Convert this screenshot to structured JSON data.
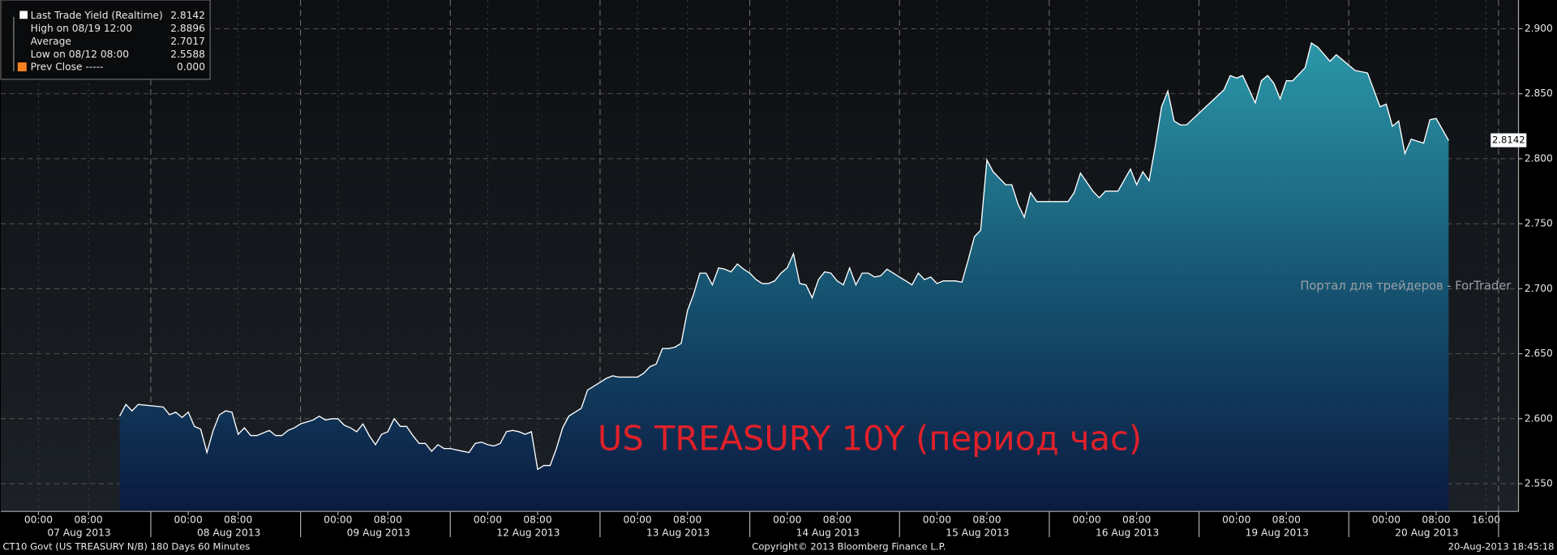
{
  "chart_data": {
    "type": "area",
    "title": "US TREASURY 10Y (период час)",
    "watermark": "Портал для трейдеров - ForTrader",
    "series": [
      {
        "name": "Last Trade Yield (Realtime)",
        "color": "#ffffff",
        "x": [
          13,
          14,
          15,
          16,
          20,
          21,
          22,
          23,
          24,
          25,
          26,
          27,
          28,
          29,
          30,
          31,
          32,
          33,
          34,
          35,
          36,
          37,
          38,
          39,
          40,
          41,
          42,
          44,
          45,
          46,
          47,
          48,
          49,
          50,
          51,
          52,
          53,
          54,
          55,
          56,
          57,
          58,
          59,
          60,
          61,
          62,
          63,
          64,
          65,
          66,
          68,
          69,
          70,
          71,
          72,
          73,
          74,
          75,
          76,
          77,
          78,
          79,
          80,
          81,
          82,
          83,
          84,
          85,
          86,
          87,
          88,
          89,
          90,
          91,
          92,
          93,
          94,
          96,
          97,
          98,
          99,
          100,
          101,
          102,
          103,
          104,
          105,
          106,
          107,
          108,
          109,
          110,
          111,
          112,
          113,
          114,
          115,
          116,
          117,
          118,
          119,
          120,
          121,
          122,
          123,
          124,
          125,
          126,
          127,
          128,
          129,
          130,
          131,
          132,
          133,
          134,
          135,
          136,
          137,
          138,
          139,
          140,
          141,
          142,
          143,
          144,
          145,
          146,
          147,
          148,
          149,
          150,
          151,
          152,
          153,
          155,
          156,
          157,
          158,
          159,
          160,
          165,
          166,
          167,
          169,
          170,
          171,
          173,
          175,
          176,
          177,
          178,
          179,
          180,
          181,
          182,
          183,
          184,
          190,
          191,
          192,
          193,
          195,
          196,
          197,
          198,
          199,
          200,
          201,
          203,
          204,
          205,
          207,
          208,
          211,
          213,
          215,
          216,
          217,
          218,
          219,
          220,
          222,
          223,
          224,
          226
        ],
        "values": [
          2.602,
          2.611,
          2.606,
          2.611,
          2.609,
          2.603,
          2.605,
          2.601,
          2.605,
          2.594,
          2.592,
          2.574,
          2.591,
          2.603,
          2.606,
          2.605,
          2.588,
          2.593,
          2.587,
          2.587,
          2.589,
          2.591,
          2.587,
          2.587,
          2.591,
          2.593,
          2.596,
          2.599,
          2.602,
          2.599,
          2.6,
          2.6,
          2.595,
          2.593,
          2.59,
          2.596,
          2.587,
          2.58,
          2.588,
          2.59,
          2.6,
          2.594,
          2.594,
          2.587,
          2.581,
          2.581,
          2.575,
          2.58,
          2.577,
          2.577,
          2.575,
          2.574,
          2.581,
          2.582,
          2.58,
          2.579,
          2.581,
          2.59,
          2.591,
          2.59,
          2.588,
          2.59,
          2.561,
          2.564,
          2.564,
          2.577,
          2.593,
          2.602,
          2.605,
          2.608,
          2.622,
          2.625,
          2.628,
          2.631,
          2.633,
          2.632,
          2.632,
          2.632,
          2.635,
          2.64,
          2.642,
          2.654,
          2.654,
          2.655,
          2.658,
          2.683,
          2.696,
          2.712,
          2.712,
          2.703,
          2.716,
          2.715,
          2.713,
          2.719,
          2.715,
          2.712,
          2.707,
          2.704,
          2.704,
          2.706,
          2.712,
          2.716,
          2.727,
          2.704,
          2.703,
          2.693,
          2.707,
          2.713,
          2.712,
          2.706,
          2.703,
          2.716,
          2.703,
          2.712,
          2.712,
          2.709,
          2.71,
          2.715,
          2.712,
          2.709,
          2.706,
          2.703,
          2.712,
          2.707,
          2.709,
          2.704,
          2.706,
          2.706,
          2.706,
          2.705,
          2.722,
          2.74,
          2.745,
          2.799,
          2.79,
          2.78,
          2.78,
          2.765,
          2.755,
          2.774,
          2.767,
          2.767,
          2.774,
          2.789,
          2.775,
          2.77,
          2.775,
          2.775,
          2.792,
          2.78,
          2.79,
          2.783,
          2.81,
          2.84,
          2.852,
          2.829,
          2.826,
          2.826,
          2.853,
          2.864,
          2.862,
          2.864,
          2.843,
          2.86,
          2.864,
          2.858,
          2.846,
          2.86,
          2.86,
          2.87,
          2.889,
          2.886,
          2.875,
          2.88,
          2.868,
          2.866,
          2.84,
          2.842,
          2.825,
          2.829,
          2.804,
          2.815,
          2.812,
          2.83,
          2.831,
          2.814
        ]
      }
    ],
    "last_value": 2.8142,
    "ylim": [
      2.5287,
      2.9221
    ],
    "yticks": [
      {
        "value": 2.55,
        "label": "2.550"
      },
      {
        "value": 2.6,
        "label": "2.600"
      },
      {
        "value": 2.65,
        "label": "2.650"
      },
      {
        "value": 2.7,
        "label": "2.700"
      },
      {
        "value": 2.75,
        "label": "2.750"
      },
      {
        "value": 2.8,
        "label": "2.800"
      },
      {
        "value": 2.85,
        "label": "2.850"
      },
      {
        "value": 2.9,
        "label": "2.900"
      }
    ],
    "xlim": [
      -6.04,
      237.2
    ],
    "xticks": [
      {
        "value": 0,
        "label": "00:00"
      },
      {
        "value": 8,
        "label": "08:00"
      },
      {
        "value": 24,
        "label": "00:00"
      },
      {
        "value": 32,
        "label": "08:00"
      },
      {
        "value": 48,
        "label": "00:00"
      },
      {
        "value": 56,
        "label": "08:00"
      },
      {
        "value": 72,
        "label": "00:00"
      },
      {
        "value": 80,
        "label": "08:00"
      },
      {
        "value": 96,
        "label": "00:00"
      },
      {
        "value": 104,
        "label": "08:00"
      },
      {
        "value": 120,
        "label": "00:00"
      },
      {
        "value": 128,
        "label": "08:00"
      },
      {
        "value": 144,
        "label": "00:00"
      },
      {
        "value": 152,
        "label": "08:00"
      },
      {
        "value": 168,
        "label": "00:00"
      },
      {
        "value": 176,
        "label": "08:00"
      },
      {
        "value": 192,
        "label": "00:00"
      },
      {
        "value": 200,
        "label": "08:00"
      },
      {
        "value": 216,
        "label": "00:00"
      },
      {
        "value": 224,
        "label": "08:00"
      },
      {
        "value": 232,
        "label": "16:00"
      }
    ],
    "day_labels": [
      "07 Aug 2013",
      "08 Aug 2013",
      "09 Aug 2013",
      "12 Aug 2013",
      "13 Aug 2013",
      "14 Aug 2013",
      "15 Aug 2013",
      "16 Aug 2013",
      "19 Aug 2013",
      "20 Aug 2013"
    ],
    "grid": true,
    "legend_rows": [
      {
        "label": "High on 08/19 12:00",
        "value": "2.8896"
      },
      {
        "label": "Average",
        "value": "2.7017"
      },
      {
        "label": "Low on 08/12 08:00",
        "value": "2.5588"
      },
      {
        "label": "Prev Close -----",
        "value": "0.000"
      }
    ],
    "legend_value": "2.8142",
    "footer": {
      "left": "CT10 Govt (US TREASURY N/B) 180 Days 60 Minutes",
      "center": "Copyright© 2013 Bloomberg Finance L.P.",
      "right": "20-Aug-2013 18:45:18"
    }
  }
}
